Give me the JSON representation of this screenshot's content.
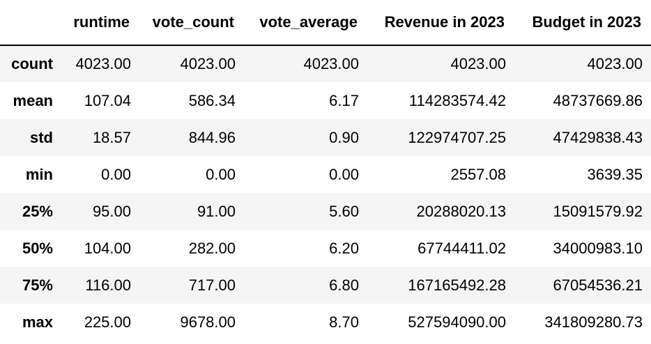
{
  "table": {
    "corner": "",
    "columns": [
      "runtime",
      "vote_count",
      "vote_average",
      "Revenue in 2023",
      "Budget in 2023"
    ],
    "rows": [
      {
        "label": "count",
        "values": [
          "4023.00",
          "4023.00",
          "4023.00",
          "4023.00",
          "4023.00"
        ]
      },
      {
        "label": "mean",
        "values": [
          "107.04",
          "586.34",
          "6.17",
          "114283574.42",
          "48737669.86"
        ]
      },
      {
        "label": "std",
        "values": [
          "18.57",
          "844.96",
          "0.90",
          "122974707.25",
          "47429838.43"
        ]
      },
      {
        "label": "min",
        "values": [
          "0.00",
          "0.00",
          "0.00",
          "2557.08",
          "3639.35"
        ]
      },
      {
        "label": "25%",
        "values": [
          "95.00",
          "91.00",
          "5.60",
          "20288020.13",
          "15091579.92"
        ]
      },
      {
        "label": "50%",
        "values": [
          "104.00",
          "282.00",
          "6.20",
          "67744411.02",
          "34000983.10"
        ]
      },
      {
        "label": "75%",
        "values": [
          "116.00",
          "717.00",
          "6.80",
          "167165492.28",
          "67054536.21"
        ]
      },
      {
        "label": "max",
        "values": [
          "225.00",
          "9678.00",
          "8.70",
          "527594090.00",
          "341809280.73"
        ]
      }
    ]
  }
}
